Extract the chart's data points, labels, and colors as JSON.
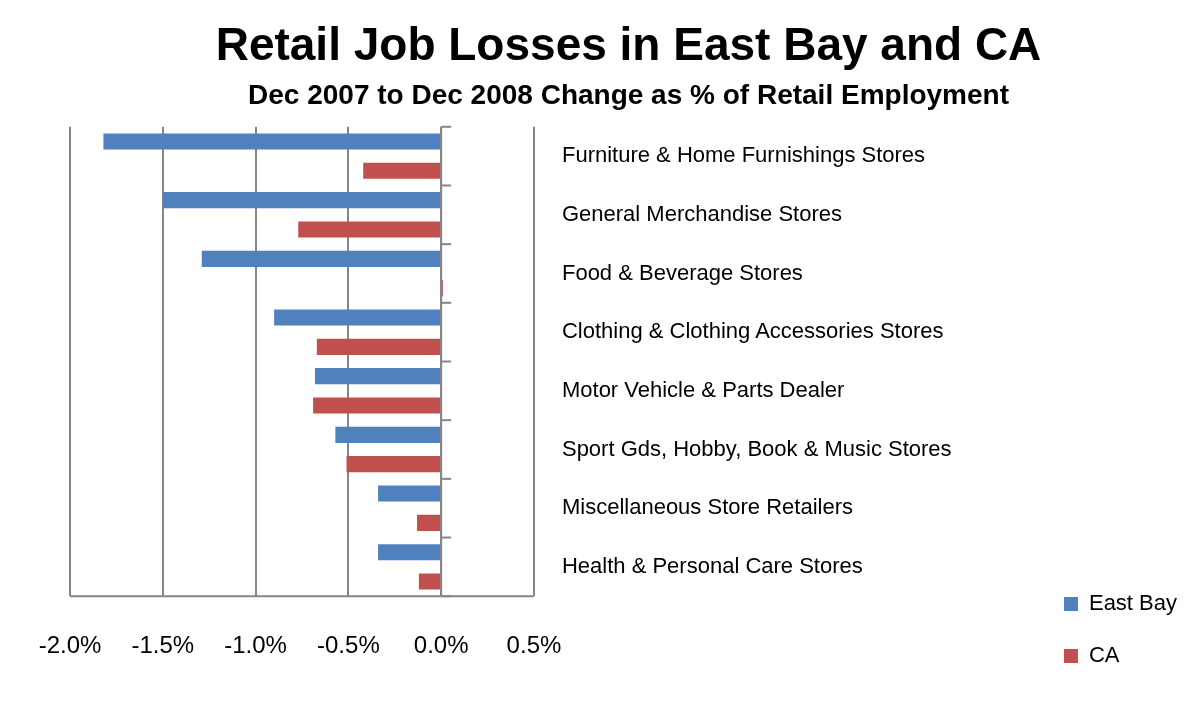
{
  "chart_data": {
    "type": "bar",
    "orientation": "horizontal",
    "title": "Retail Job Losses in East Bay and CA",
    "subtitle": "Dec 2007 to Dec 2008 Change as % of Retail Employment",
    "categories": [
      "Furniture & Home Furnishings Stores",
      "General Merchandise Stores",
      "Food & Beverage Stores",
      "Clothing & Clothing Accessories Stores",
      "Motor Vehicle & Parts Dealer",
      "Sport Gds, Hobby, Book & Music Stores",
      "Miscellaneous Store Retailers",
      "Health & Personal Care Stores"
    ],
    "series": [
      {
        "name": "East Bay",
        "color": "#4f81bd",
        "values": [
          -1.82,
          -1.5,
          -1.29,
          -0.9,
          -0.68,
          -0.57,
          -0.34,
          -0.34
        ]
      },
      {
        "name": "CA",
        "color": "#c0504d",
        "values": [
          -0.42,
          -0.77,
          0.01,
          -0.67,
          -0.69,
          -0.51,
          -0.13,
          -0.12
        ]
      }
    ],
    "xlim": [
      -2.0,
      0.5
    ],
    "xticks": [
      {
        "value": -2.0,
        "label": "-2.0%"
      },
      {
        "value": -1.5,
        "label": "-1.5%"
      },
      {
        "value": -1.0,
        "label": "-1.0%"
      },
      {
        "value": -0.5,
        "label": "-0.5%"
      },
      {
        "value": 0.0,
        "label": "0.0%"
      },
      {
        "value": 0.5,
        "label": "0.5%"
      }
    ],
    "grid": "x",
    "legend": "bottom right"
  }
}
